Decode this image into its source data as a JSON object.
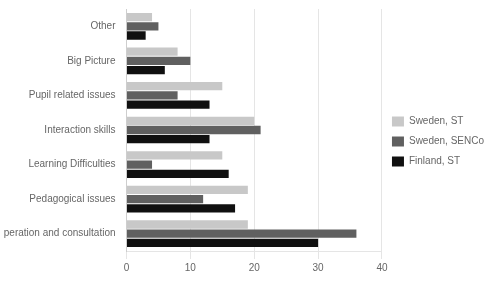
{
  "chart_data": {
    "type": "bar",
    "orientation": "horizontal",
    "categories": [
      "Other",
      "Big Picture",
      "Pupil related issues",
      "Interaction skills",
      "Learning Difficulties",
      "Pedagogical issues",
      "Co-operation and consultation"
    ],
    "series": [
      {
        "name": "Sweden, ST",
        "color": "#c8c8c8",
        "values": [
          4,
          8,
          15,
          20,
          15,
          19,
          19
        ]
      },
      {
        "name": "Sweden, SENCo",
        "color": "#606060",
        "values": [
          5,
          10,
          8,
          21,
          4,
          12,
          36
        ]
      },
      {
        "name": "Finland, ST",
        "color": "#101010",
        "values": [
          3,
          6,
          13,
          13,
          16,
          17,
          30
        ]
      }
    ],
    "xlim": [
      0,
      40
    ],
    "xticks": [
      0,
      10,
      20,
      30,
      40
    ],
    "grid": true,
    "legend": "right"
  }
}
